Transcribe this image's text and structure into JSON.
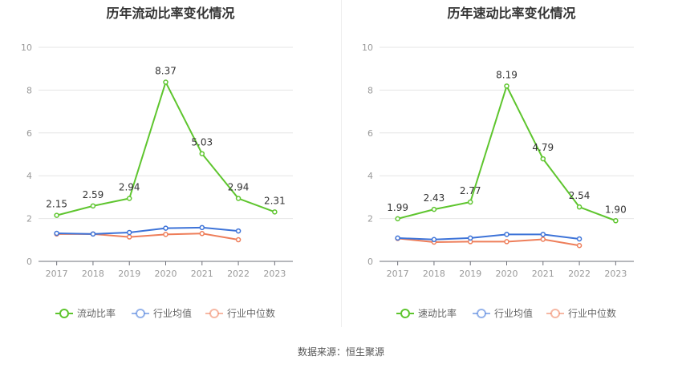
{
  "source_text": "数据来源：恒生聚源",
  "chart_data": [
    {
      "type": "line",
      "title": "历年流动比率变化情况",
      "categories": [
        "2017",
        "2018",
        "2019",
        "2020",
        "2021",
        "2022",
        "2023"
      ],
      "ylim": [
        0,
        10
      ],
      "yticks": [
        0,
        2,
        4,
        6,
        8,
        10
      ],
      "grid": true,
      "legend_position": "bottom",
      "series": [
        {
          "name": "流动比率",
          "color": "#5ec52e",
          "values": [
            2.15,
            2.59,
            2.94,
            8.37,
            5.03,
            2.94,
            2.31
          ],
          "labels": [
            "2.15",
            "2.59",
            "2.94",
            "8.37",
            "5.03",
            "2.94",
            "2.31"
          ]
        },
        {
          "name": "行业均值",
          "color": "#3d73d8",
          "values": [
            1.31,
            1.28,
            1.35,
            1.55,
            1.58,
            1.42,
            null
          ]
        },
        {
          "name": "行业中位数",
          "color": "#ee7e5a",
          "values": [
            1.28,
            1.28,
            1.14,
            1.26,
            1.3,
            1.01,
            null
          ]
        }
      ]
    },
    {
      "type": "line",
      "title": "历年速动比率变化情况",
      "categories": [
        "2017",
        "2018",
        "2019",
        "2020",
        "2021",
        "2022",
        "2023"
      ],
      "ylim": [
        0,
        10
      ],
      "yticks": [
        0,
        2,
        4,
        6,
        8,
        10
      ],
      "grid": true,
      "legend_position": "bottom",
      "series": [
        {
          "name": "速动比率",
          "color": "#5ec52e",
          "values": [
            1.99,
            2.43,
            2.77,
            8.19,
            4.79,
            2.54,
            1.9
          ],
          "labels": [
            "1.99",
            "2.43",
            "2.77",
            "8.19",
            "4.79",
            "2.54",
            "1.90"
          ]
        },
        {
          "name": "行业均值",
          "color": "#3d73d8",
          "values": [
            1.09,
            1.02,
            1.09,
            1.26,
            1.26,
            1.05,
            null
          ]
        },
        {
          "name": "行业中位数",
          "color": "#ee7e5a",
          "values": [
            1.07,
            0.9,
            0.92,
            0.92,
            1.03,
            0.74,
            null
          ]
        }
      ]
    }
  ]
}
